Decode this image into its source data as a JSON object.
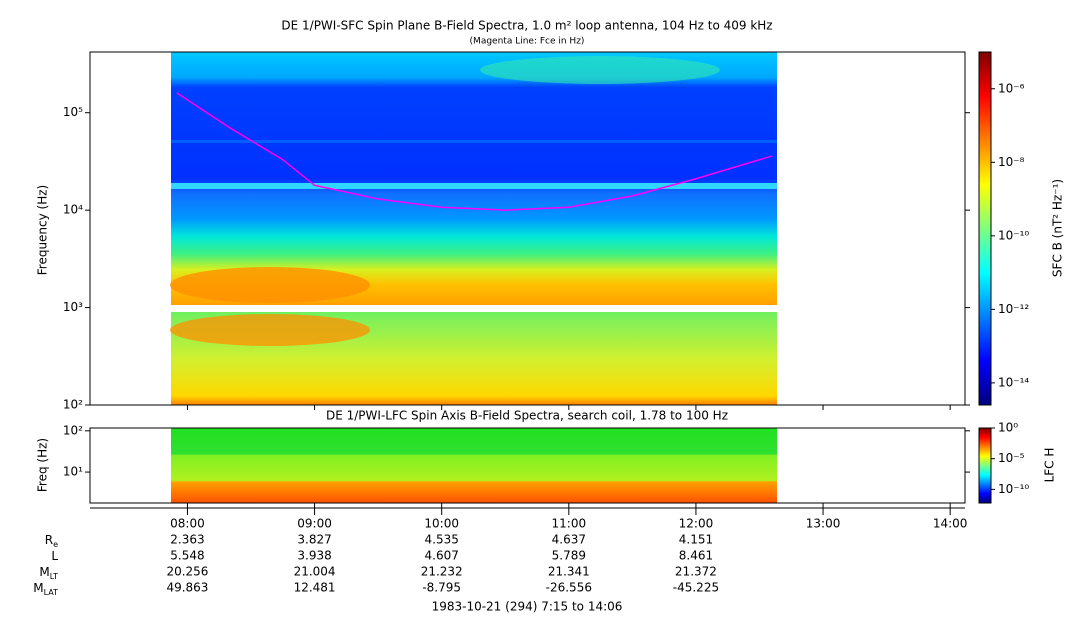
{
  "chart_data": [
    {
      "type": "spectrogram",
      "title": "DE 1/PWI-SFC  Spin Plane B-Field Spectra, 1.0 m² loop antenna, 104 Hz to 409 kHz",
      "subtitle": "(Magenta Line: Fce in Hz)",
      "y_label": "Frequency (Hz)",
      "ylog": true,
      "ylim": [
        100,
        420000
      ],
      "yticks": [
        {
          "value": 100,
          "label": "10²"
        },
        {
          "value": 1000,
          "label": "10³"
        },
        {
          "value": 10000,
          "label": "10⁴"
        },
        {
          "value": 100000,
          "label": "10⁵"
        }
      ],
      "colorbar": {
        "label": "SFC B (nT² Hz⁻¹)",
        "log": true,
        "lim": [
          2.5e-15,
          1e-05
        ],
        "ticks": [
          {
            "value": 1e-06,
            "label": "10⁻⁶"
          },
          {
            "value": 1e-08,
            "label": "10⁻⁸"
          },
          {
            "value": 1e-10,
            "label": "10⁻¹⁰"
          },
          {
            "value": 1e-12,
            "label": "10⁻¹²"
          },
          {
            "value": 1e-14,
            "label": "10⁻¹⁴"
          }
        ]
      },
      "line": {
        "color": "#ff00ff",
        "x": [
          "07:55",
          "08:20",
          "08:45",
          "09:00",
          "09:30",
          "10:00",
          "10:30",
          "11:00",
          "11:30",
          "12:00",
          "12:36"
        ],
        "values": [
          160000,
          70000,
          33000,
          18000,
          13000,
          10700,
          10000,
          10700,
          14000,
          21000,
          36000
        ]
      }
    },
    {
      "type": "spectrogram",
      "title": "DE 1/PWI-LFC  Spin Axis B-Field Spectra, search coil, 1.78 to 100 Hz",
      "y_label": "Freq (Hz)",
      "ylog": true,
      "ylim": [
        1.78,
        117
      ],
      "yticks": [
        {
          "value": 10,
          "label": "10¹"
        },
        {
          "value": 100,
          "label": "10²"
        }
      ],
      "colorbar": {
        "label": "LFC H",
        "log": true,
        "lim": [
          6e-13,
          1
        ],
        "ticks": [
          {
            "value": 1,
            "label": "10⁰"
          },
          {
            "value": 1e-05,
            "label": "10⁻⁵"
          },
          {
            "value": 1e-10,
            "label": "10⁻¹⁰"
          }
        ]
      }
    }
  ],
  "x_axis": {
    "xlim": [
      "07:14",
      "14:07"
    ],
    "xticks": [
      "08:00",
      "09:00",
      "10:00",
      "11:00",
      "12:00",
      "13:00",
      "14:00"
    ]
  },
  "ephemeris": [
    {
      "label": "R",
      "sub": "e",
      "values": [
        2.363,
        3.827,
        4.535,
        4.637,
        4.151
      ]
    },
    {
      "label": "L",
      "values": [
        5.548,
        3.938,
        4.607,
        5.789,
        8.461
      ]
    },
    {
      "label": "M",
      "sub": "LT",
      "values": [
        20.256,
        21.004,
        21.232,
        21.341,
        21.372
      ]
    },
    {
      "label": "M",
      "sub": "LAT",
      "values": [
        49.863,
        12.481,
        -8.795,
        -26.556,
        -45.225
      ]
    }
  ],
  "footer": "1983-10-21 (294) 7:15 to 14:06"
}
